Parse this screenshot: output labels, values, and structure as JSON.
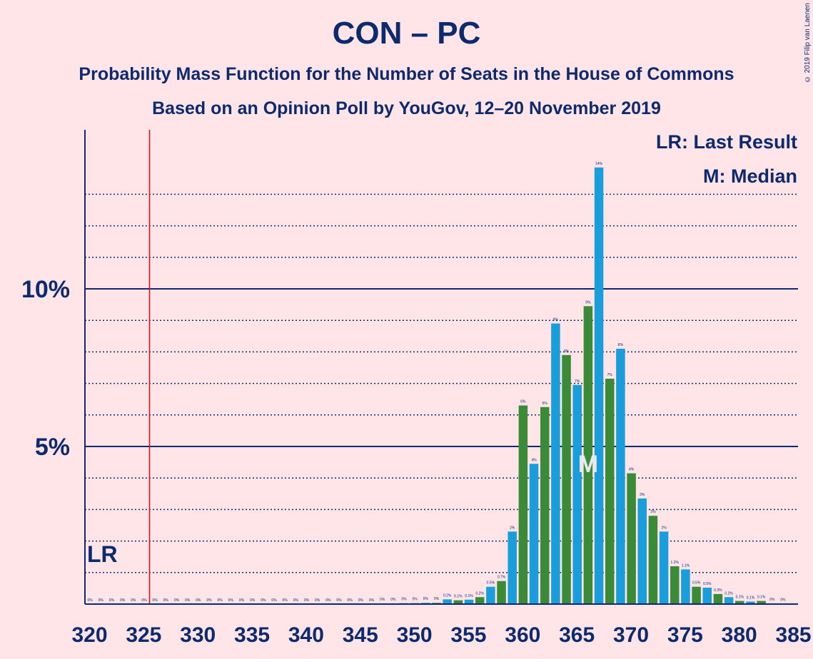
{
  "chart_data": {
    "type": "bar",
    "title": "CON – PC",
    "subtitle": "Probability Mass Function for the Number of Seats in the House of Commons",
    "source_line": "Based on an Opinion Poll by YouGov, 12–20 November 2019",
    "copyright": "© 2019 Filip van Laenen",
    "legend": {
      "lr": "LR: Last Result",
      "median": "M: Median"
    },
    "lr_label": "LR",
    "median_label": "M",
    "last_result_seat": 325.5,
    "median_seat": 366,
    "xlim": [
      320,
      385
    ],
    "ylim": [
      0,
      15
    ],
    "y_ticks": [
      {
        "value": 5,
        "label": "5%"
      },
      {
        "value": 10,
        "label": "10%"
      }
    ],
    "x_ticks": [
      320,
      325,
      330,
      335,
      340,
      345,
      350,
      355,
      360,
      365,
      370,
      375,
      380,
      385
    ],
    "colors": {
      "blue": "#1a9edb",
      "green": "#3a8a38",
      "axis": "#0d2a6e",
      "lr_line": "#e01010"
    },
    "seats": [
      320,
      321,
      322,
      323,
      324,
      325,
      326,
      327,
      328,
      329,
      330,
      331,
      332,
      333,
      334,
      335,
      336,
      337,
      338,
      339,
      340,
      341,
      342,
      343,
      344,
      345,
      346,
      347,
      348,
      349,
      350,
      351,
      352,
      353,
      354,
      355,
      356,
      357,
      358,
      359,
      360,
      361,
      362,
      363,
      364,
      365,
      366,
      367,
      368,
      369,
      370,
      371,
      372,
      373,
      374,
      375,
      376,
      377,
      378,
      379,
      380,
      381,
      382,
      383,
      384
    ],
    "values": [
      0,
      0,
      0,
      0,
      0,
      0,
      0,
      0,
      0,
      0,
      0,
      0,
      0,
      0,
      0,
      0,
      0,
      0,
      0,
      0,
      0,
      0,
      0,
      0,
      0,
      0,
      0,
      0.02,
      0.02,
      0.03,
      0.03,
      0.04,
      0.04,
      0.15,
      0.12,
      0.14,
      0.22,
      0.55,
      0.73,
      2.3,
      6.3,
      4.45,
      6.25,
      8.9,
      7.9,
      6.95,
      9.45,
      13.85,
      7.15,
      8.1,
      4.15,
      3.35,
      2.8,
      2.3,
      1.2,
      1.1,
      0.55,
      0.52,
      0.32,
      0.22,
      0.1,
      0.08,
      0.1,
      0.02,
      0.01
    ],
    "labels": [
      "0%",
      "0%",
      "0%",
      "0%",
      "0%",
      "0%",
      "0%",
      "0%",
      "0%",
      "0%",
      "0%",
      "0%",
      "0%",
      "0%",
      "0%",
      "0%",
      "0%",
      "0%",
      "0%",
      "0%",
      "0%",
      "0%",
      "0%",
      "0%",
      "0%",
      "0%",
      "0%",
      "0%",
      "0%",
      "0%",
      "0%",
      "0%",
      "0%",
      "0.2%",
      "0.1%",
      "0.1%",
      "0.2%",
      "0.5%",
      "0.7%",
      "2%",
      "6%",
      "4%",
      "6%",
      "9%",
      "8%",
      "7%",
      "9%",
      "14%",
      "7%",
      "8%",
      "4%",
      "3%",
      "3%",
      "2%",
      "1.2%",
      "1.1%",
      "0.5%",
      "0.5%",
      "0.3%",
      "0.2%",
      "0.1%",
      "0.1%",
      "0.1%",
      "0%",
      "0%"
    ]
  }
}
